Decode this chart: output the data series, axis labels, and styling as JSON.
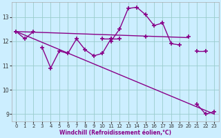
{
  "x": [
    0,
    1,
    2,
    3,
    4,
    5,
    6,
    7,
    8,
    9,
    10,
    11,
    12,
    13,
    14,
    15,
    16,
    17,
    18,
    19,
    20,
    21,
    22,
    23
  ],
  "line_flat": [
    12.4,
    12.1,
    12.4,
    null,
    null,
    null,
    null,
    null,
    null,
    null,
    12.1,
    12.1,
    12.1,
    null,
    null,
    12.2,
    null,
    null,
    null,
    null,
    12.2,
    null,
    null,
    null
  ],
  "line_zigzag": [
    12.4,
    null,
    null,
    11.75,
    10.9,
    11.6,
    11.5,
    12.1,
    11.65,
    11.4,
    11.5,
    12.1,
    null,
    null,
    null,
    null,
    null,
    null,
    null,
    null,
    null,
    null,
    null,
    null
  ],
  "line_peak": [
    12.4,
    null,
    null,
    null,
    null,
    null,
    null,
    null,
    null,
    null,
    null,
    12.0,
    12.5,
    13.35,
    13.4,
    13.1,
    12.65,
    12.75,
    11.9,
    11.85,
    null,
    11.6,
    11.6,
    null
  ],
  "line_drop": [
    12.4,
    null,
    null,
    null,
    null,
    null,
    null,
    null,
    null,
    null,
    null,
    null,
    null,
    null,
    null,
    null,
    null,
    null,
    null,
    null,
    null,
    9.4,
    9.0,
    9.1
  ],
  "trend1_x": [
    0,
    20
  ],
  "trend1_y": [
    12.4,
    12.15
  ],
  "trend2_x": [
    0,
    23
  ],
  "trend2_y": [
    12.4,
    9.0
  ],
  "color": "#880088",
  "bg_color": "#cceeff",
  "grid_color": "#99cccc",
  "ylabel_values": [
    9,
    10,
    11,
    12,
    13
  ],
  "xlabel_values": [
    0,
    1,
    2,
    3,
    4,
    5,
    6,
    7,
    8,
    9,
    10,
    11,
    12,
    13,
    14,
    15,
    16,
    17,
    18,
    19,
    20,
    21,
    22,
    23
  ],
  "xlabel": "Windchill (Refroidissement éolien,°C)",
  "ylim": [
    8.7,
    13.6
  ],
  "xlim": [
    -0.5,
    23.5
  ]
}
